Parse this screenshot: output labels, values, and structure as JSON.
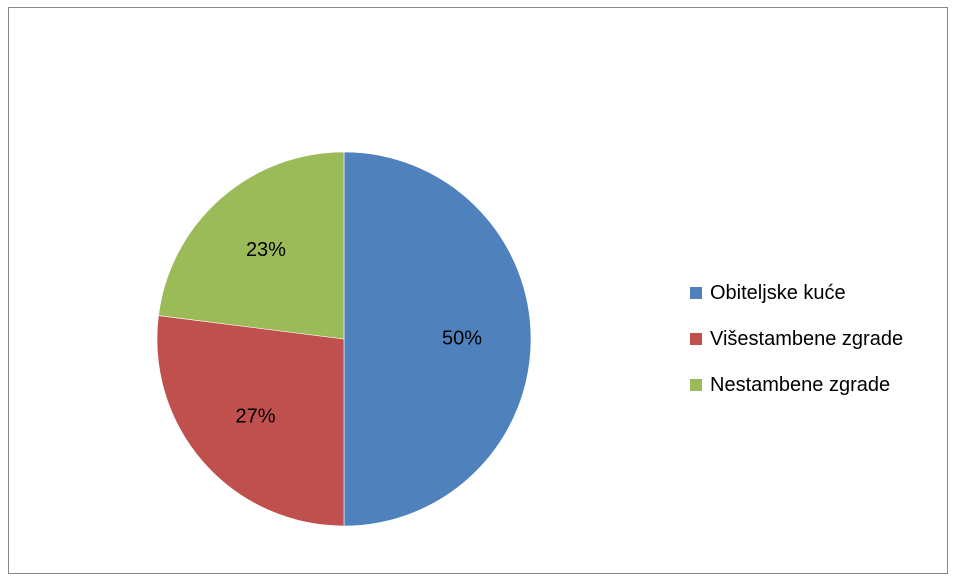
{
  "chart_data": {
    "type": "pie",
    "categories": [
      "Obiteljske kuće",
      "Višestambene zgrade",
      "Nestambene zgrade"
    ],
    "values": [
      50,
      27,
      23
    ],
    "data_labels": [
      "50%",
      "27%",
      "23%"
    ],
    "colors": [
      "#4f81bd",
      "#c0504d",
      "#9bbb59"
    ],
    "legend_position": "right",
    "start_angle": "12 o'clock",
    "direction": "clockwise"
  },
  "legend": {
    "items": [
      {
        "label": "Obiteljske kuće",
        "color": "#4f81bd"
      },
      {
        "label": "Višestambene zgrade",
        "color": "#c0504d"
      },
      {
        "label": "Nestambene zgrade",
        "color": "#9bbb59"
      }
    ]
  }
}
